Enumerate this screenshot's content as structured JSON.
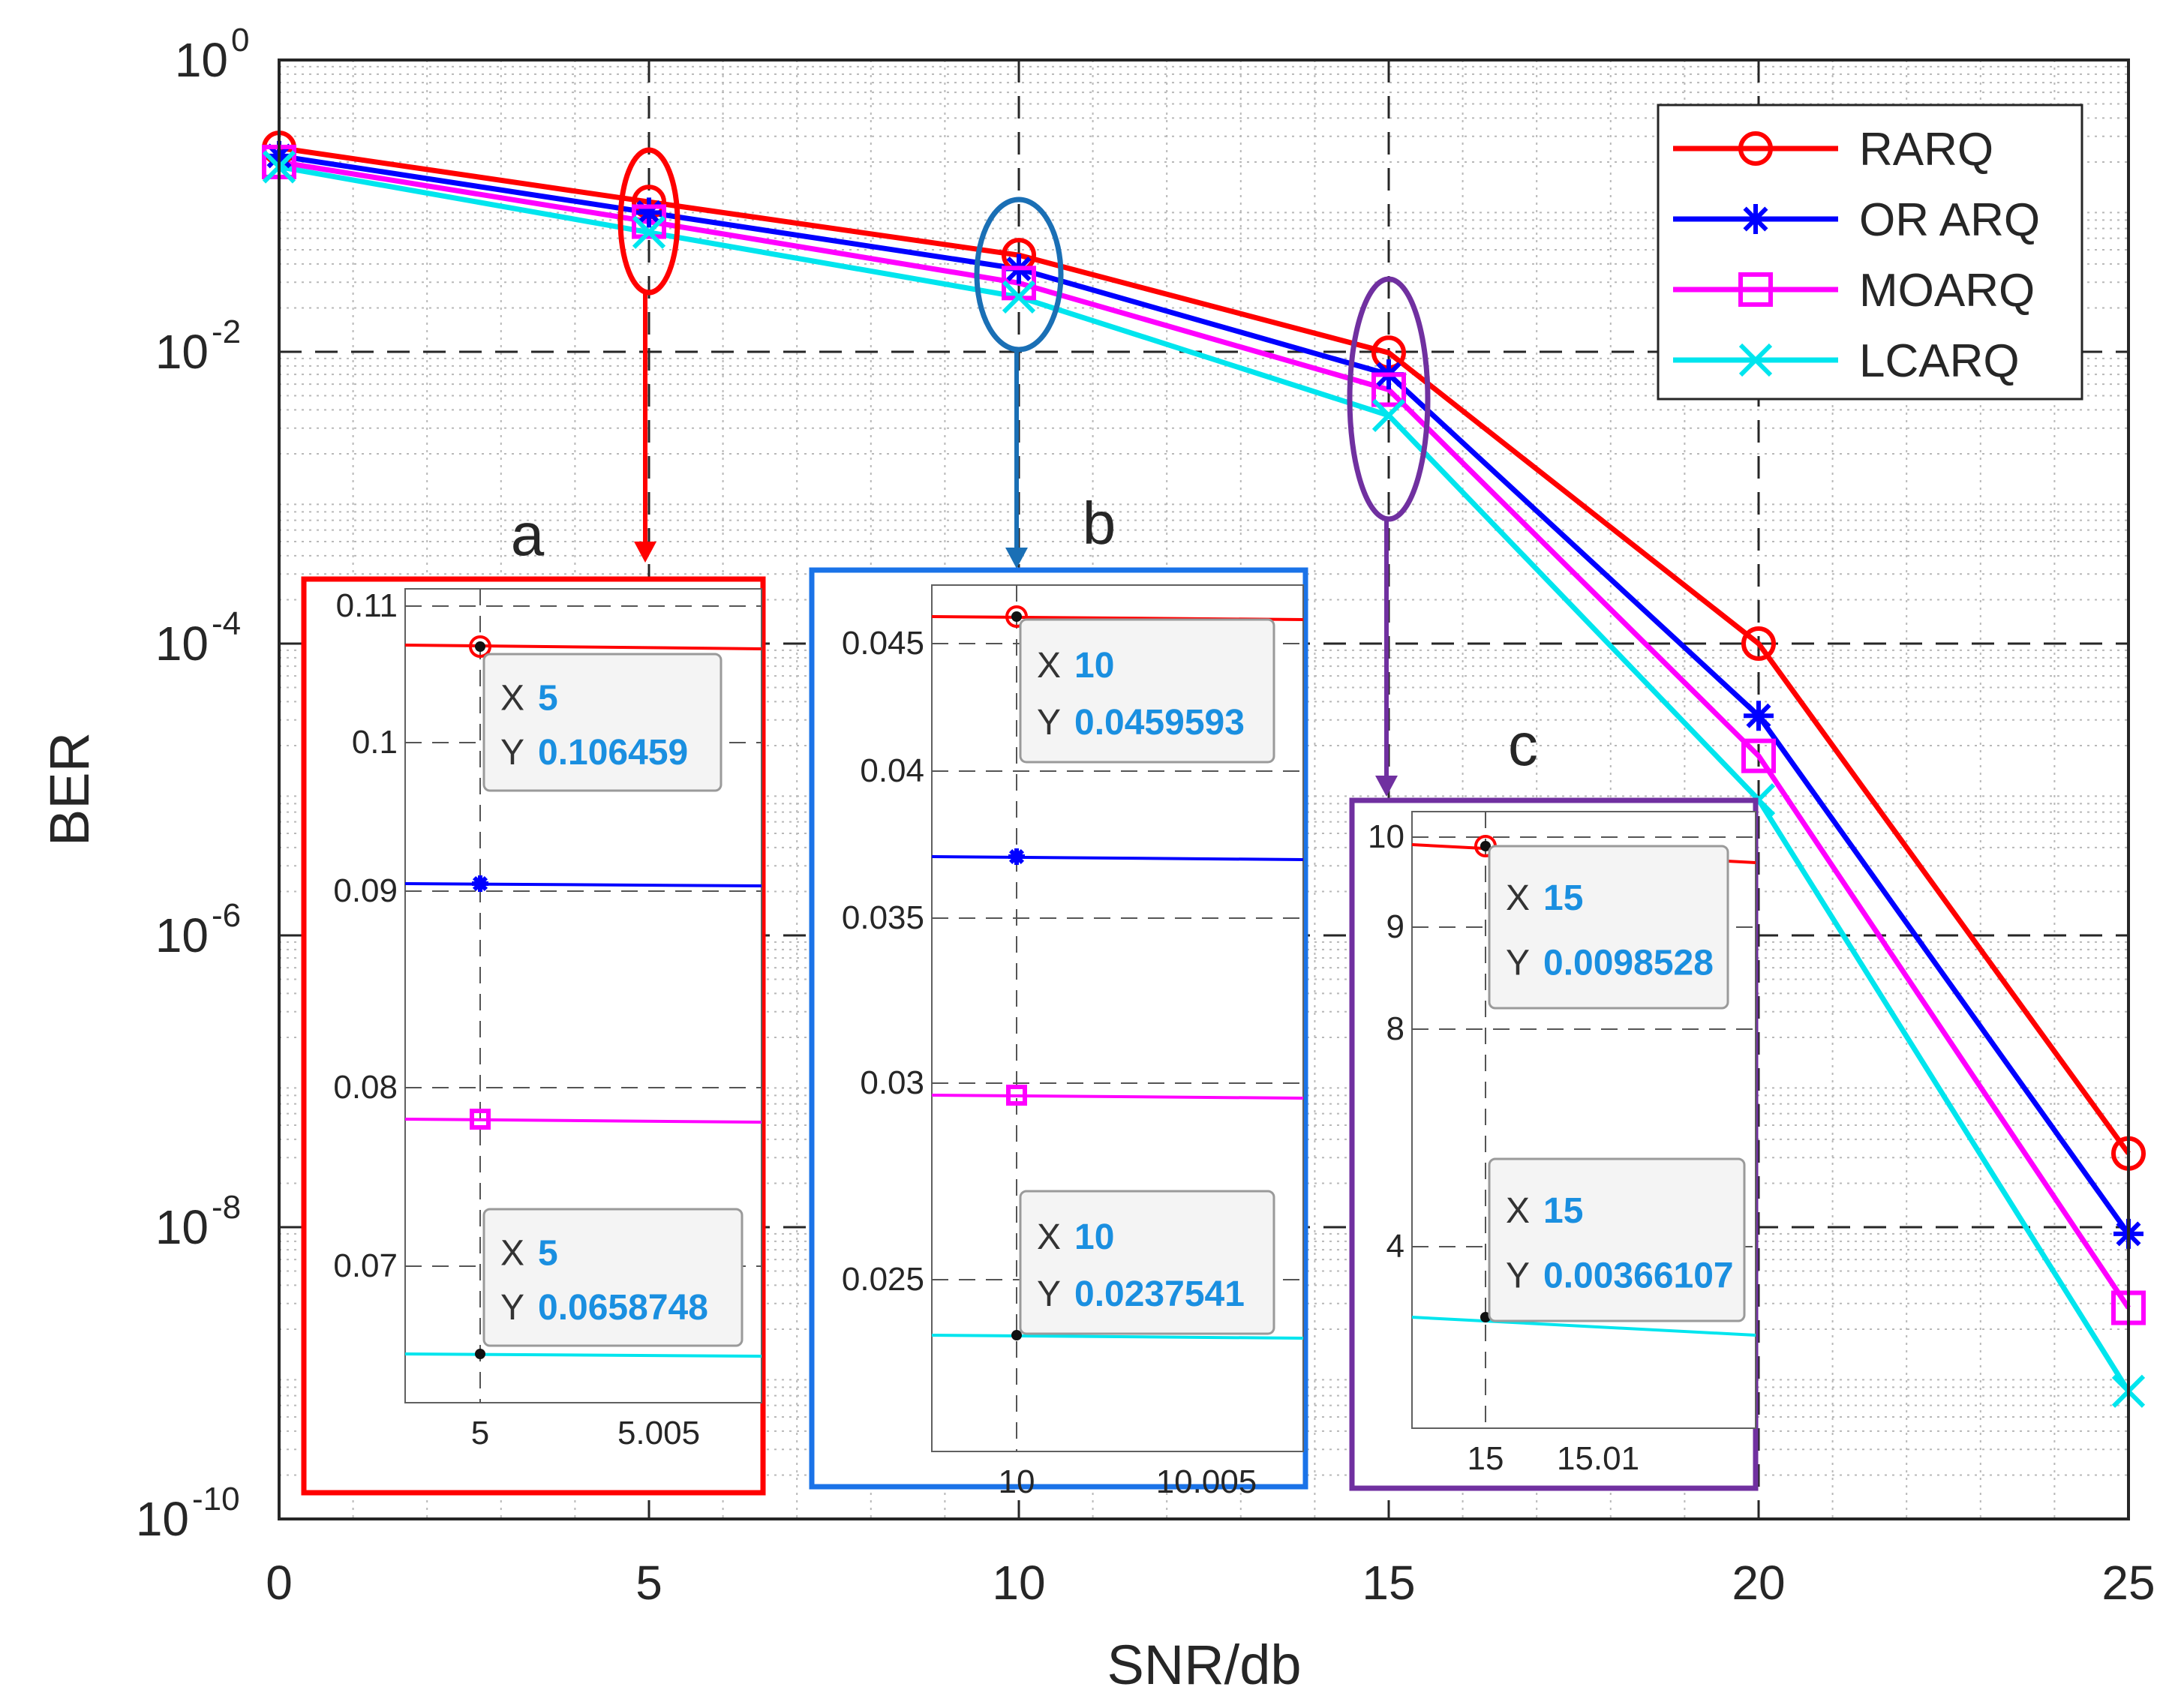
{
  "chart_data": {
    "type": "line",
    "xlabel": "SNR/db",
    "ylabel": "BER",
    "x": [
      0,
      5,
      10,
      15,
      20,
      25
    ],
    "xlim": [
      0,
      25
    ],
    "ylim": [
      1e-10,
      1
    ],
    "yscale": "log",
    "grid": true,
    "x_tick_labels": [
      "0",
      "5",
      "10",
      "15",
      "20",
      "25"
    ],
    "y_ticks": [
      {
        "value": 1,
        "base": "10",
        "exp": "0"
      },
      {
        "value": 0.01,
        "base": "10",
        "exp": "-2"
      },
      {
        "value": 0.0001,
        "base": "10",
        "exp": "-4"
      },
      {
        "value": 1e-06,
        "base": "10",
        "exp": "-6"
      },
      {
        "value": 1e-08,
        "base": "10",
        "exp": "-8"
      },
      {
        "value": 1e-10,
        "base": "10",
        "exp": "-10"
      }
    ],
    "legend_position": "top-right",
    "series": [
      {
        "name": "RARQ",
        "color": "#ff0000",
        "marker": "circle",
        "values": [
          0.25,
          0.106459,
          0.0459593,
          0.0098528,
          0.0001,
          3.2e-08
        ]
      },
      {
        "name": "OR ARQ",
        "color": "#0000ff",
        "marker": "asterisk",
        "values": [
          0.22,
          0.09,
          0.037,
          0.007,
          3.2e-05,
          9e-09
        ]
      },
      {
        "name": "MOARQ",
        "color": "#ff00ff",
        "marker": "square",
        "values": [
          0.2,
          0.078,
          0.0296,
          0.0055,
          1.7e-05,
          2.8e-09
        ]
      },
      {
        "name": "LCARQ",
        "color": "#00e5ee",
        "marker": "x",
        "values": [
          0.185,
          0.0658748,
          0.0237541,
          0.00366107,
          8.5e-06,
          7.5e-10
        ]
      }
    ],
    "insets": [
      {
        "label": "a",
        "frame_color": "#ff0000",
        "x_ticks": [
          "5",
          "5.005"
        ],
        "y_ticks": [
          "0.11",
          "0.1",
          "0.09",
          "0.08",
          "0.07"
        ],
        "datatips": [
          {
            "x_label": "X",
            "x_value": "5",
            "y_label": "Y",
            "y_value": "0.106459"
          },
          {
            "x_label": "X",
            "x_value": "5",
            "y_label": "Y",
            "y_value": "0.0658748"
          }
        ]
      },
      {
        "label": "b",
        "frame_color": "#1a73e8",
        "x_ticks": [
          "10",
          "10.005"
        ],
        "y_ticks": [
          "0.045",
          "0.04",
          "0.035",
          "0.03",
          "0.025"
        ],
        "datatips": [
          {
            "x_label": "X",
            "x_value": "10",
            "y_label": "Y",
            "y_value": "0.0459593"
          },
          {
            "x_label": "X",
            "x_value": "10",
            "y_label": "Y",
            "y_value": "0.0237541"
          }
        ]
      },
      {
        "label": "c",
        "frame_color": "#7030a0",
        "x_ticks": [
          "15",
          "15.01"
        ],
        "y_ticks": [
          "10",
          "9",
          "8",
          "4"
        ],
        "datatips": [
          {
            "x_label": "X",
            "x_value": "15",
            "y_label": "Y",
            "y_value": "0.0098528"
          },
          {
            "x_label": "X",
            "x_value": "15",
            "y_label": "Y",
            "y_value": "0.00366107"
          }
        ]
      }
    ]
  }
}
